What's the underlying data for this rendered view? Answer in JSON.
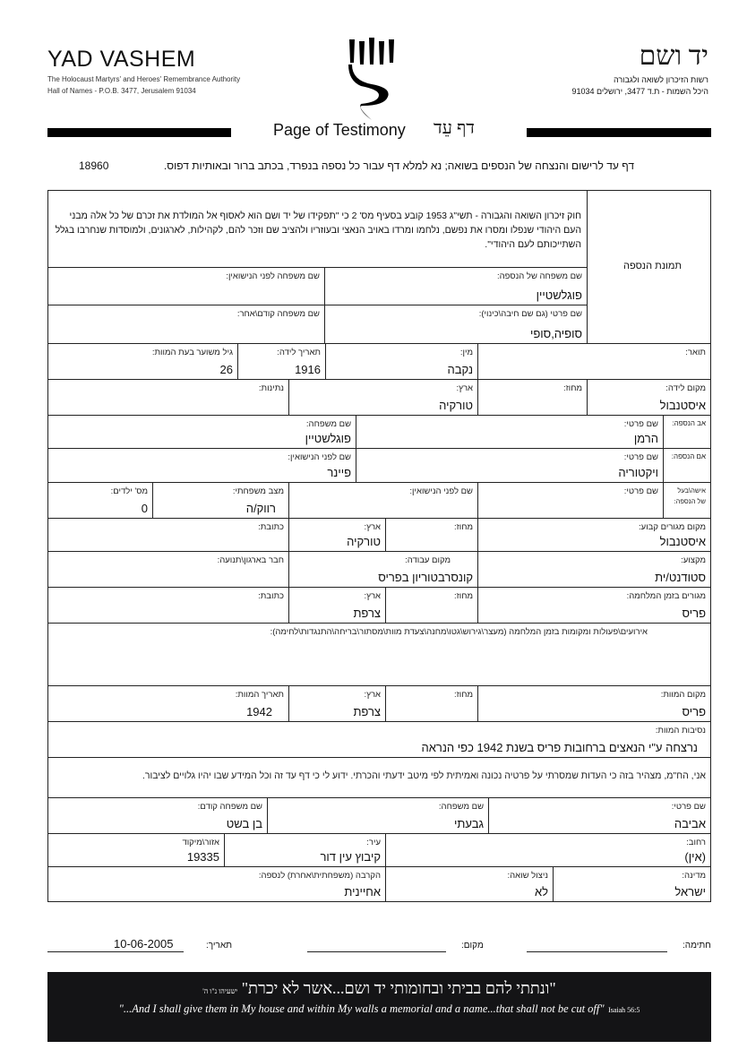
{
  "header": {
    "org_en": "YAD VASHEM",
    "sub_en_1": "The Holocaust Martyrs' and Heroes' Remembrance Authority",
    "sub_en_2": "Hall of Names - P.O.B. 3477, Jerusalem 91034",
    "org_he": "יד ושם",
    "sub_he_1": "רשות הזיכרון לשואה ולגבורה",
    "sub_he_2": "היכל השמות - ת.ד 3477, ירושלים 91034",
    "title_en": "Page of Testimony",
    "title_he": "דף עֵד"
  },
  "instructions": {
    "text": "דף עד לרישום והנצחה של הנספים בשואה; נא למלא דף עבור כל נספה בנפרד, בכתב ברור ובאותיות דפוס.",
    "number": "18960"
  },
  "law_text": "חוק זיכרון השואה והגבורה - תשי\"ג 1953 קובע בסעיף מס' 2 כי \"תפקידו של יד ושם הוא לאסוף אל המולדת את זכרם של כל אלה מבני העם היהודי שנפלו ומסרו את נפשם, נלחמו ומרדו באויב הנאצי ובעוזריו ולהציב שם וזכר להם, לקהילות, לארגונים, ולמוסדות שנחרבו בגלל השתייכותם לעם היהודי\".",
  "photo_label": "תמונת הנספה",
  "victim": {
    "surname": {
      "label": "שם משפחה של הנספה:",
      "value": "פוגלשטיין"
    },
    "maiden_name": {
      "label": "שם משפחה לפני הנישואין:",
      "value": ""
    },
    "first_name": {
      "label": "שם פרטי (גם שם חיבה\\כינוי):",
      "value": "סופיה,סופי"
    },
    "prev_surname": {
      "label": "שם משפחה קודם\\אחר:",
      "value": ""
    },
    "title": {
      "label": "תואר:",
      "value": ""
    },
    "gender": {
      "label": "מין:",
      "value": "נקבה"
    },
    "birth_date": {
      "label": "תאריך לידה:",
      "value": "1916"
    },
    "age_at_death": {
      "label": "גיל משוער בעת המוות:",
      "value": "26"
    },
    "birth_place": {
      "label": "מקום לידה:",
      "value": "איסטנבול"
    },
    "birth_district": {
      "label": "מחוז:",
      "value": ""
    },
    "birth_country": {
      "label": "ארץ:",
      "value": "טורקיה"
    },
    "nationality": {
      "label": "נתינות:",
      "value": ""
    },
    "father": {
      "side_label": "אב הנספה:",
      "first_label": "שם פרטי:",
      "first": "הרמן",
      "last_label": "שם משפחה:",
      "last": "פוגלשטיין"
    },
    "mother": {
      "side_label": "אם הנספה:",
      "first_label": "שם פרטי:",
      "first": "ויקטוריה",
      "last_label": "שם לפני הנישואין:",
      "last": "פיינר"
    },
    "spouse": {
      "side_label_1": "אישה\\בעל",
      "side_label_2": "של הנספה:",
      "first_label": "שם פרטי:",
      "first": "",
      "maiden_label": "שם לפני הנישואין:",
      "maiden": "",
      "status_label": "מצב משפחתי:",
      "status": "רווק/ה",
      "children_label": "מס' ילדים:",
      "children": "0"
    },
    "residence": {
      "place_label": "מקום מגורים קבוע:",
      "place": "איסטנבול",
      "district_label": "מחוז:",
      "district": "",
      "country_label": "ארץ:",
      "country": "טורקיה",
      "address_label": "כתובת:",
      "address": ""
    },
    "profession": {
      "label": "מקצוע:",
      "value": "סטודנט/ית"
    },
    "workplace": {
      "label": "מקום עבודה:",
      "value": "קונסרבטוריון בפריס"
    },
    "organization": {
      "label": "חבר בארגון\\תנועה:",
      "value": ""
    },
    "war_residence": {
      "place_label": "מגורים בזמן המלחמה:",
      "place": "פריס",
      "district_label": "מחוז:",
      "district": "",
      "country_label": "ארץ:",
      "country": "צרפת",
      "address_label": "כתובת:",
      "address": ""
    },
    "events_label": "אירועים\\פעולות ומקומות בזמן המלחמה (מעצר\\גירוש\\גטו\\מחנה\\צעדת מוות\\מסתור\\בריחה\\התנגדות\\לחימה):",
    "death": {
      "place_label": "מקום המוות:",
      "place": "פריס",
      "district_label": "מחוז:",
      "district": "",
      "country_label": "ארץ:",
      "country": "צרפת",
      "date_label": "תאריך המוות:",
      "date": "1942",
      "cause_label": "נסיבות המוות:",
      "cause": "נרצחה ע\"י הנאצים ברחובות פריס בשנת 1942 כפי הנראה"
    }
  },
  "declaration": "אני, הח\"מ, מצהיר בזה כי העדות שמסרתי על פרטיה נכונה ואמיתית לפי מיטב ידעתי והכרתי. ידוע לי כי דף עד זה וכל המידע שבו יהיו גלויים לציבור.",
  "submitter": {
    "first_name": {
      "label": "שם פרטי:",
      "value": "אביבה"
    },
    "surname": {
      "label": "שם משפחה:",
      "value": "גבעתי"
    },
    "prev_surname": {
      "label": "שם משפחה קודם:",
      "value": "בן בשט"
    },
    "street": {
      "label": "רחוב:",
      "value": "(אין)"
    },
    "city": {
      "label": "עיר:",
      "value": "קיבוץ עין דור"
    },
    "zip": {
      "label": "אזור\\מיקוד",
      "value": "19335"
    },
    "country": {
      "label": "מדינה:",
      "value": "ישראל"
    },
    "survivor": {
      "label": "ניצול שואה:",
      "value": "לא"
    },
    "relationship": {
      "label": "הקרבה (משפחתית\\אחרת) לנספה:",
      "value": "אחיינית"
    }
  },
  "signature": {
    "signature_label": "חתימה:",
    "place_label": "מקום:",
    "place": "",
    "date_label": "תאריך:",
    "date": "10-06-2005"
  },
  "banner": {
    "he": "\"ונתתי להם בביתי ובחומותי יד ושם...אשר לא יכרת\"",
    "he_ref": "ישעיהו נ\"ו ה'",
    "en": "\"...And I shall give them in My house and within My walls a memorial and a name...that shall not be cut off\"",
    "en_ref": "Isaiah 56:5"
  }
}
